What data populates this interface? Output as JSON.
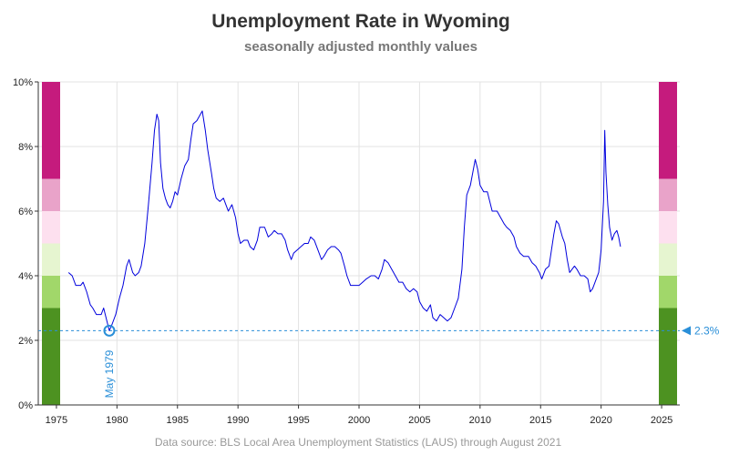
{
  "chart_data": {
    "type": "line",
    "title": "Unemployment Rate in Wyoming",
    "subtitle": "seasonally adjusted monthly values",
    "source": "Data source: BLS Local Area Unemployment Statistics (LAUS) through August 2021",
    "xlabel": "",
    "ylabel": "",
    "xlim": [
      1973.5,
      2026.5
    ],
    "ylim": [
      0,
      10
    ],
    "x_ticks": [
      1975,
      1980,
      1985,
      1990,
      1995,
      2000,
      2005,
      2010,
      2015,
      2020,
      2025
    ],
    "y_ticks": [
      0,
      2,
      4,
      6,
      8,
      10
    ],
    "y_tick_labels": [
      "0%",
      "2%",
      "4%",
      "6%",
      "8%",
      "10%"
    ],
    "grid": true,
    "line_color": "#0000dd",
    "reference_line": {
      "value": 2.3,
      "label": "2.3%",
      "color": "#2a8fd8"
    },
    "min_point": {
      "x": 1979.37,
      "y": 2.3,
      "label": "May 1979"
    },
    "color_bands": [
      {
        "from": 0,
        "to": 3,
        "color": "#4d9221"
      },
      {
        "from": 3,
        "to": 4,
        "color": "#a1d76a"
      },
      {
        "from": 4,
        "to": 5,
        "color": "#e6f5d0"
      },
      {
        "from": 5,
        "to": 6,
        "color": "#fde0ef"
      },
      {
        "from": 6,
        "to": 7,
        "color": "#e9a3c9"
      },
      {
        "from": 7,
        "to": 10,
        "color": "#c51b7d"
      }
    ],
    "series": [
      {
        "values": [
          [
            1976.0,
            4.1
          ],
          [
            1976.3,
            4.0
          ],
          [
            1976.6,
            3.7
          ],
          [
            1977.0,
            3.7
          ],
          [
            1977.2,
            3.8
          ],
          [
            1977.5,
            3.5
          ],
          [
            1977.8,
            3.1
          ],
          [
            1978.0,
            3.0
          ],
          [
            1978.3,
            2.8
          ],
          [
            1978.7,
            2.8
          ],
          [
            1978.9,
            3.0
          ],
          [
            1979.1,
            2.7
          ],
          [
            1979.37,
            2.3
          ],
          [
            1979.6,
            2.5
          ],
          [
            1979.9,
            2.8
          ],
          [
            1980.2,
            3.3
          ],
          [
            1980.5,
            3.7
          ],
          [
            1980.8,
            4.3
          ],
          [
            1981.0,
            4.5
          ],
          [
            1981.3,
            4.1
          ],
          [
            1981.5,
            4.0
          ],
          [
            1981.8,
            4.1
          ],
          [
            1982.0,
            4.3
          ],
          [
            1982.3,
            5.0
          ],
          [
            1982.6,
            6.2
          ],
          [
            1982.9,
            7.5
          ],
          [
            1983.1,
            8.5
          ],
          [
            1983.3,
            9.0
          ],
          [
            1983.45,
            8.8
          ],
          [
            1983.6,
            7.5
          ],
          [
            1983.8,
            6.7
          ],
          [
            1984.0,
            6.4
          ],
          [
            1984.2,
            6.2
          ],
          [
            1984.4,
            6.1
          ],
          [
            1984.6,
            6.3
          ],
          [
            1984.8,
            6.6
          ],
          [
            1985.0,
            6.5
          ],
          [
            1985.3,
            7.0
          ],
          [
            1985.6,
            7.4
          ],
          [
            1985.9,
            7.6
          ],
          [
            1986.1,
            8.2
          ],
          [
            1986.3,
            8.7
          ],
          [
            1986.6,
            8.8
          ],
          [
            1986.9,
            9.0
          ],
          [
            1987.05,
            9.1
          ],
          [
            1987.3,
            8.5
          ],
          [
            1987.5,
            7.9
          ],
          [
            1987.8,
            7.2
          ],
          [
            1988.0,
            6.7
          ],
          [
            1988.2,
            6.4
          ],
          [
            1988.5,
            6.3
          ],
          [
            1988.8,
            6.4
          ],
          [
            1989.0,
            6.2
          ],
          [
            1989.2,
            6.0
          ],
          [
            1989.5,
            6.2
          ],
          [
            1989.8,
            5.8
          ],
          [
            1990.0,
            5.3
          ],
          [
            1990.2,
            5.0
          ],
          [
            1990.5,
            5.1
          ],
          [
            1990.8,
            5.1
          ],
          [
            1991.0,
            4.9
          ],
          [
            1991.3,
            4.8
          ],
          [
            1991.6,
            5.1
          ],
          [
            1991.8,
            5.5
          ],
          [
            1992.2,
            5.5
          ],
          [
            1992.5,
            5.2
          ],
          [
            1992.8,
            5.3
          ],
          [
            1993.0,
            5.4
          ],
          [
            1993.3,
            5.3
          ],
          [
            1993.6,
            5.3
          ],
          [
            1993.9,
            5.1
          ],
          [
            1994.1,
            4.8
          ],
          [
            1994.4,
            4.5
          ],
          [
            1994.6,
            4.7
          ],
          [
            1994.9,
            4.8
          ],
          [
            1995.2,
            4.9
          ],
          [
            1995.5,
            5.0
          ],
          [
            1995.8,
            5.0
          ],
          [
            1996.0,
            5.2
          ],
          [
            1996.3,
            5.1
          ],
          [
            1996.6,
            4.8
          ],
          [
            1996.9,
            4.5
          ],
          [
            1997.1,
            4.6
          ],
          [
            1997.4,
            4.8
          ],
          [
            1997.7,
            4.9
          ],
          [
            1998.0,
            4.9
          ],
          [
            1998.3,
            4.8
          ],
          [
            1998.5,
            4.7
          ],
          [
            1998.8,
            4.3
          ],
          [
            1999.0,
            4.0
          ],
          [
            1999.3,
            3.7
          ],
          [
            1999.6,
            3.7
          ],
          [
            2000.0,
            3.7
          ],
          [
            2000.3,
            3.8
          ],
          [
            2000.6,
            3.9
          ],
          [
            2001.0,
            4.0
          ],
          [
            2001.3,
            4.0
          ],
          [
            2001.6,
            3.9
          ],
          [
            2001.9,
            4.2
          ],
          [
            2002.1,
            4.5
          ],
          [
            2002.4,
            4.4
          ],
          [
            2002.7,
            4.2
          ],
          [
            2003.0,
            4.0
          ],
          [
            2003.3,
            3.8
          ],
          [
            2003.6,
            3.8
          ],
          [
            2003.9,
            3.6
          ],
          [
            2004.2,
            3.5
          ],
          [
            2004.5,
            3.6
          ],
          [
            2004.8,
            3.5
          ],
          [
            2005.0,
            3.2
          ],
          [
            2005.3,
            3.0
          ],
          [
            2005.6,
            2.9
          ],
          [
            2005.9,
            3.1
          ],
          [
            2006.1,
            2.7
          ],
          [
            2006.4,
            2.6
          ],
          [
            2006.7,
            2.8
          ],
          [
            2007.0,
            2.7
          ],
          [
            2007.3,
            2.6
          ],
          [
            2007.6,
            2.7
          ],
          [
            2007.9,
            3.0
          ],
          [
            2008.2,
            3.3
          ],
          [
            2008.5,
            4.2
          ],
          [
            2008.7,
            5.5
          ],
          [
            2008.9,
            6.5
          ],
          [
            2009.2,
            6.8
          ],
          [
            2009.4,
            7.2
          ],
          [
            2009.6,
            7.6
          ],
          [
            2009.8,
            7.3
          ],
          [
            2010.0,
            6.8
          ],
          [
            2010.3,
            6.6
          ],
          [
            2010.6,
            6.6
          ],
          [
            2010.8,
            6.3
          ],
          [
            2011.0,
            6.0
          ],
          [
            2011.4,
            6.0
          ],
          [
            2011.7,
            5.8
          ],
          [
            2012.0,
            5.6
          ],
          [
            2012.2,
            5.5
          ],
          [
            2012.5,
            5.4
          ],
          [
            2012.8,
            5.2
          ],
          [
            2013.0,
            4.9
          ],
          [
            2013.3,
            4.7
          ],
          [
            2013.6,
            4.6
          ],
          [
            2014.0,
            4.6
          ],
          [
            2014.3,
            4.4
          ],
          [
            2014.6,
            4.3
          ],
          [
            2014.9,
            4.1
          ],
          [
            2015.1,
            3.9
          ],
          [
            2015.4,
            4.2
          ],
          [
            2015.7,
            4.3
          ],
          [
            2015.9,
            4.8
          ],
          [
            2016.1,
            5.3
          ],
          [
            2016.3,
            5.7
          ],
          [
            2016.5,
            5.6
          ],
          [
            2016.8,
            5.2
          ],
          [
            2017.0,
            5.0
          ],
          [
            2017.2,
            4.5
          ],
          [
            2017.4,
            4.1
          ],
          [
            2017.6,
            4.2
          ],
          [
            2017.8,
            4.3
          ],
          [
            2018.0,
            4.2
          ],
          [
            2018.3,
            4.0
          ],
          [
            2018.6,
            4.0
          ],
          [
            2018.9,
            3.9
          ],
          [
            2019.1,
            3.5
          ],
          [
            2019.3,
            3.6
          ],
          [
            2019.5,
            3.8
          ],
          [
            2019.8,
            4.1
          ],
          [
            2020.0,
            4.8
          ],
          [
            2020.2,
            6.3
          ],
          [
            2020.3,
            8.5
          ],
          [
            2020.4,
            7.2
          ],
          [
            2020.55,
            6.2
          ],
          [
            2020.7,
            5.5
          ],
          [
            2020.9,
            5.1
          ],
          [
            2021.1,
            5.3
          ],
          [
            2021.3,
            5.4
          ],
          [
            2021.45,
            5.2
          ],
          [
            2021.6,
            4.9
          ]
        ]
      }
    ]
  }
}
